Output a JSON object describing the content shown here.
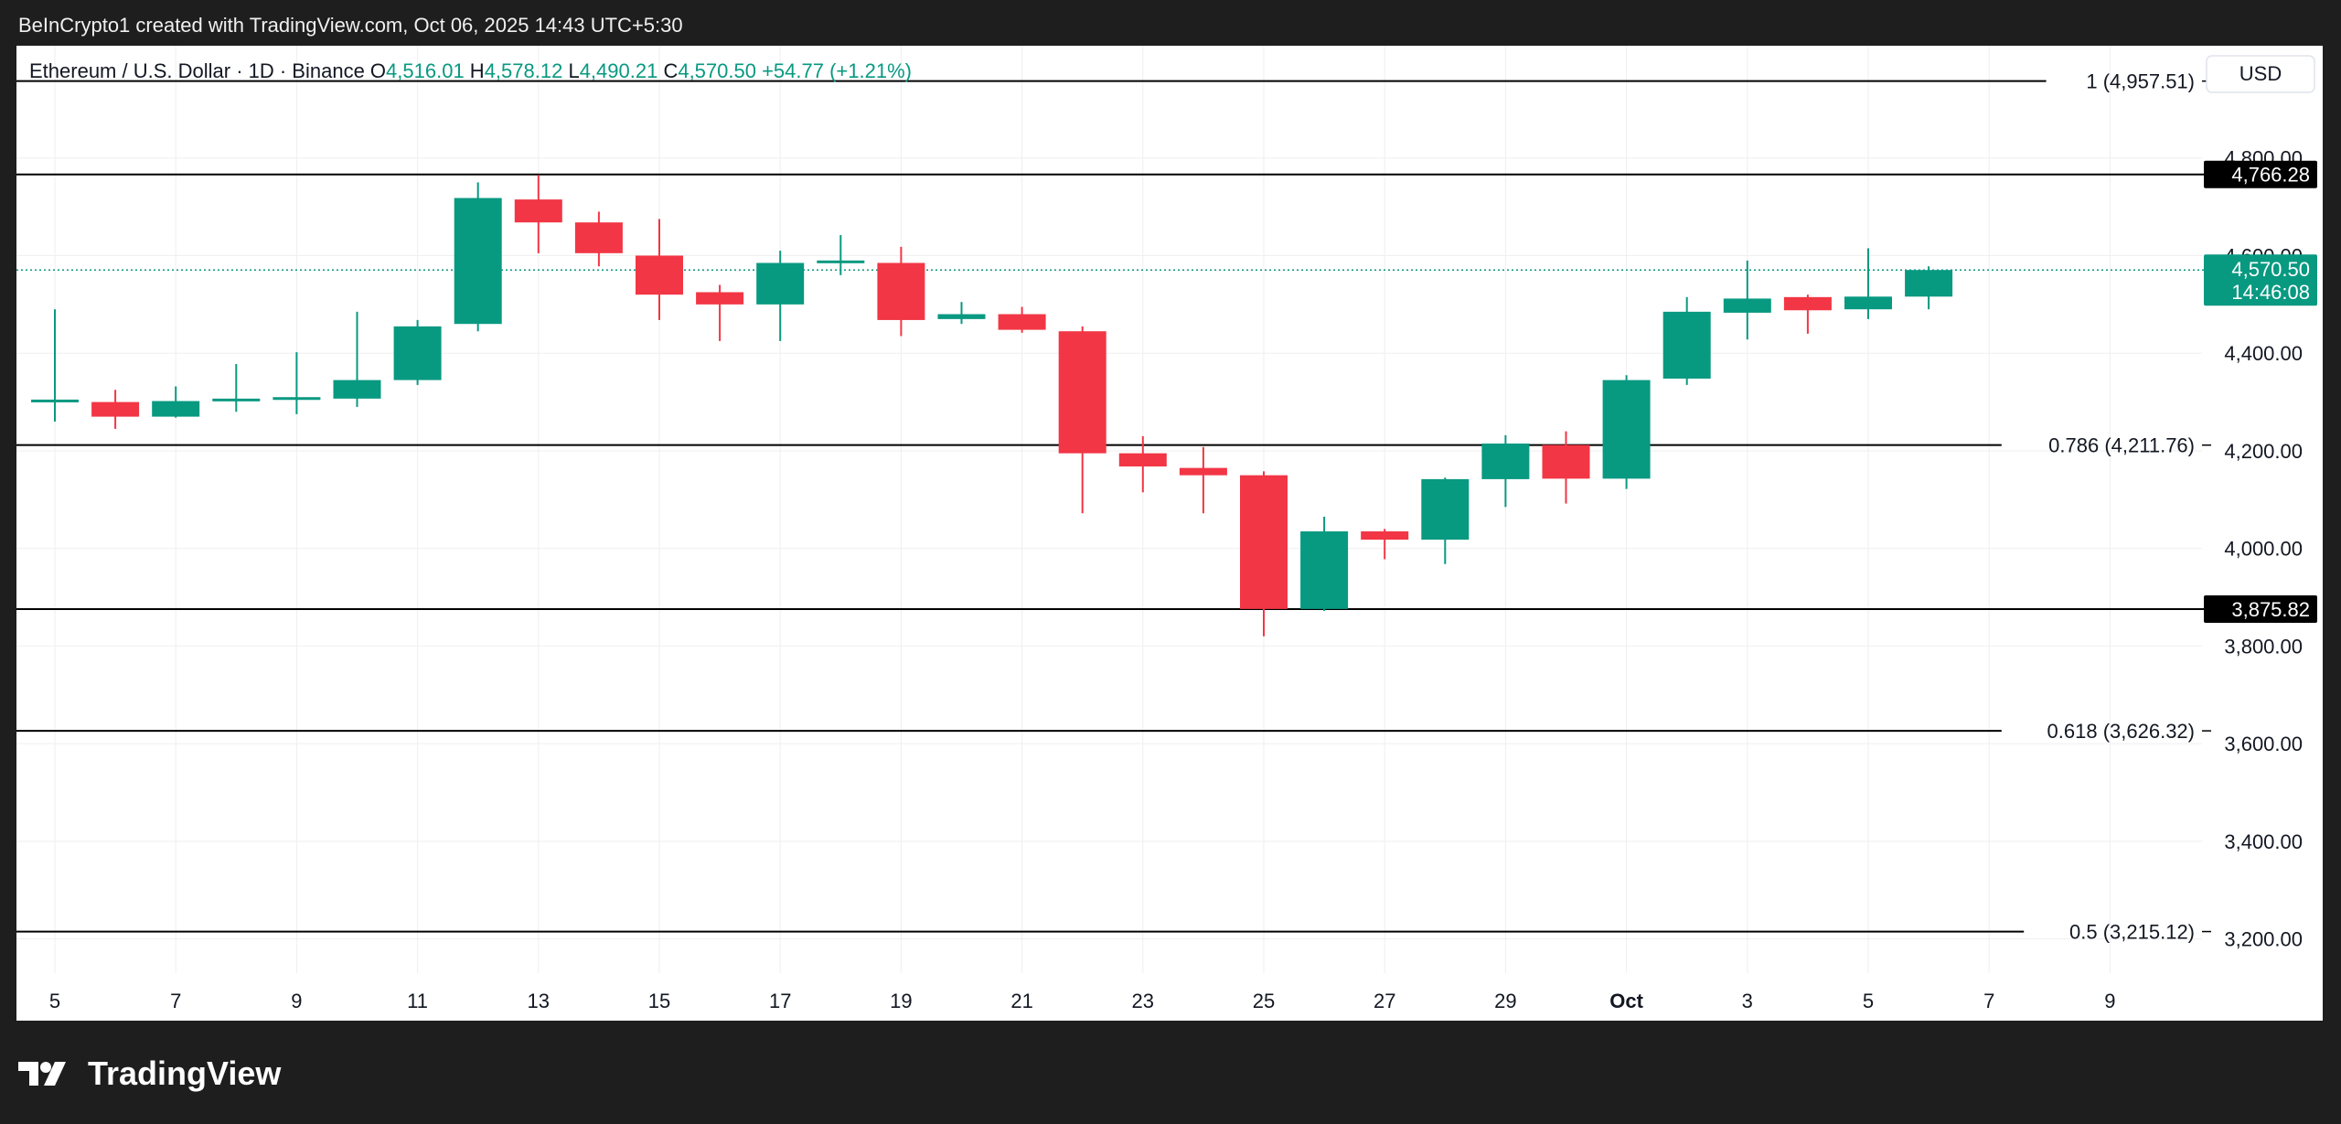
{
  "caption": "BeInCrypto1 created with TradingView.com, Oct 06, 2025 14:43 UTC+5:30",
  "brand": {
    "name": "TradingView",
    "icon": "tradingview-logo-icon"
  },
  "colors": {
    "up": "#089981",
    "down": "#f23645",
    "grid": "#efefef",
    "axis_text": "#131722",
    "label_bg": "#000000",
    "current_bg": "#089981"
  },
  "chart_data": {
    "type": "candlestick",
    "header": {
      "symbol": "Ethereum / U.S. Dollar · 1D · Binance",
      "open_label": "O",
      "open": "4,516.01",
      "high_label": "H",
      "high": "4,578.12",
      "low_label": "L",
      "low": "4,490.21",
      "close_label": "C",
      "close": "4,570.50",
      "change": "+54.77 (+1.21%)"
    },
    "currency_button": "USD",
    "y_range": [
      3130,
      5030
    ],
    "y_ticks": [
      {
        "value": 4800,
        "label": "4,800.00"
      },
      {
        "value": 4600,
        "label": "4,600.00"
      },
      {
        "value": 4400,
        "label": "4,400.00"
      },
      {
        "value": 4200,
        "label": "4,200.00"
      },
      {
        "value": 4000,
        "label": "4,000.00"
      },
      {
        "value": 3800,
        "label": "3,800.00"
      },
      {
        "value": 3600,
        "label": "3,600.00"
      },
      {
        "value": 3400,
        "label": "3,400.00"
      },
      {
        "value": 3200,
        "label": "3,200.00"
      }
    ],
    "x_ticks": [
      {
        "day": 5,
        "label": "5"
      },
      {
        "day": 7,
        "label": "7"
      },
      {
        "day": 9,
        "label": "9"
      },
      {
        "day": 11,
        "label": "11"
      },
      {
        "day": 13,
        "label": "13"
      },
      {
        "day": 15,
        "label": "15"
      },
      {
        "day": 17,
        "label": "17"
      },
      {
        "day": 19,
        "label": "19"
      },
      {
        "day": 21,
        "label": "21"
      },
      {
        "day": 23,
        "label": "23"
      },
      {
        "day": 25,
        "label": "25"
      },
      {
        "day": 27,
        "label": "27"
      },
      {
        "day": 29,
        "label": "29"
      },
      {
        "day": 31,
        "label": "Oct",
        "bold": true
      },
      {
        "day": 33,
        "label": "3"
      },
      {
        "day": 35,
        "label": "5"
      },
      {
        "day": 37,
        "label": "7"
      },
      {
        "day": 39,
        "label": "9"
      }
    ],
    "candles": [
      {
        "day": 5,
        "o": 4300,
        "h": 4490,
        "l": 4260,
        "c": 4305
      },
      {
        "day": 6,
        "o": 4300,
        "h": 4325,
        "l": 4245,
        "c": 4270
      },
      {
        "day": 7,
        "o": 4270,
        "h": 4332,
        "l": 4268,
        "c": 4302
      },
      {
        "day": 8,
        "o": 4303,
        "h": 4378,
        "l": 4280,
        "c": 4307
      },
      {
        "day": 9,
        "o": 4305,
        "h": 4402,
        "l": 4275,
        "c": 4310
      },
      {
        "day": 10,
        "o": 4307,
        "h": 4485,
        "l": 4290,
        "c": 4345
      },
      {
        "day": 11,
        "o": 4345,
        "h": 4468,
        "l": 4335,
        "c": 4455
      },
      {
        "day": 12,
        "o": 4460,
        "h": 4750,
        "l": 4445,
        "c": 4718
      },
      {
        "day": 13,
        "o": 4715,
        "h": 4765,
        "l": 4605,
        "c": 4668
      },
      {
        "day": 14,
        "o": 4668,
        "h": 4690,
        "l": 4578,
        "c": 4605
      },
      {
        "day": 15,
        "o": 4600,
        "h": 4675,
        "l": 4468,
        "c": 4520
      },
      {
        "day": 16,
        "o": 4525,
        "h": 4540,
        "l": 4425,
        "c": 4500
      },
      {
        "day": 17,
        "o": 4500,
        "h": 4610,
        "l": 4425,
        "c": 4585
      },
      {
        "day": 18,
        "o": 4585,
        "h": 4642,
        "l": 4560,
        "c": 4590
      },
      {
        "day": 19,
        "o": 4585,
        "h": 4618,
        "l": 4435,
        "c": 4468
      },
      {
        "day": 20,
        "o": 4470,
        "h": 4505,
        "l": 4460,
        "c": 4480
      },
      {
        "day": 21,
        "o": 4480,
        "h": 4495,
        "l": 4442,
        "c": 4448
      },
      {
        "day": 22,
        "o": 4445,
        "h": 4455,
        "l": 4072,
        "c": 4195
      },
      {
        "day": 23,
        "o": 4195,
        "h": 4230,
        "l": 4115,
        "c": 4168
      },
      {
        "day": 24,
        "o": 4165,
        "h": 4208,
        "l": 4072,
        "c": 4150
      },
      {
        "day": 25,
        "o": 4150,
        "h": 4158,
        "l": 3820,
        "c": 3876
      },
      {
        "day": 26,
        "o": 3876,
        "h": 4065,
        "l": 3872,
        "c": 4035
      },
      {
        "day": 27,
        "o": 4035,
        "h": 4040,
        "l": 3978,
        "c": 4018
      },
      {
        "day": 28,
        "o": 4018,
        "h": 4145,
        "l": 3968,
        "c": 4142
      },
      {
        "day": 29,
        "o": 4142,
        "h": 4232,
        "l": 4085,
        "c": 4215
      },
      {
        "day": 30,
        "o": 4212,
        "h": 4240,
        "l": 4092,
        "c": 4143
      },
      {
        "day": 31,
        "o": 4143,
        "h": 4355,
        "l": 4122,
        "c": 4345
      },
      {
        "day": 32,
        "o": 4348,
        "h": 4515,
        "l": 4335,
        "c": 4485
      },
      {
        "day": 33,
        "o": 4483,
        "h": 4590,
        "l": 4428,
        "c": 4512
      },
      {
        "day": 34,
        "o": 4515,
        "h": 4520,
        "l": 4440,
        "c": 4488
      },
      {
        "day": 35,
        "o": 4490,
        "h": 4615,
        "l": 4470,
        "c": 4516
      },
      {
        "day": 36,
        "o": 4516,
        "h": 4578,
        "l": 4490,
        "c": 4570.5
      }
    ],
    "horizontal_levels": [
      {
        "value": 4957.51,
        "label": "1 (4,957.51)",
        "style": "fib"
      },
      {
        "value": 4766.28,
        "label": "4,766.28",
        "style": "price-tag"
      },
      {
        "value": 4211.76,
        "label": "0.786 (4,211.76)",
        "style": "fib"
      },
      {
        "value": 3875.82,
        "label": "3,875.82",
        "style": "price-tag"
      },
      {
        "value": 3626.32,
        "label": "0.618 (3,626.32)",
        "style": "fib"
      },
      {
        "value": 3215.12,
        "label": "0.5 (3,215.12)",
        "style": "fib"
      }
    ],
    "current_price": {
      "value": 4570.5,
      "label": "4,570.50",
      "countdown": "14:46:08"
    }
  }
}
